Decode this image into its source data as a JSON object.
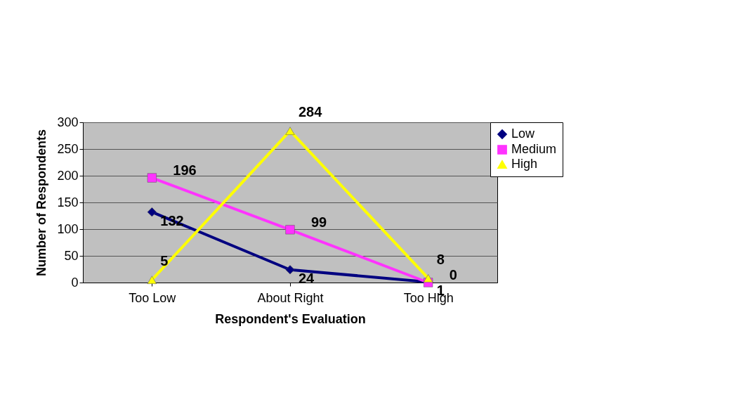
{
  "chart_data": {
    "type": "line",
    "xlabel": "Respondent's Evaluation",
    "ylabel": "Number of Respondents",
    "categories": [
      "Too Low",
      "About Right",
      "Too High"
    ],
    "series": [
      {
        "name": "Low",
        "color": "#000080",
        "marker": "diamond",
        "values": [
          132,
          24,
          1
        ]
      },
      {
        "name": "Medium",
        "color": "#ff33ff",
        "marker": "square",
        "values": [
          196,
          99,
          0
        ]
      },
      {
        "name": "High",
        "color": "#ffff00",
        "marker": "triangle",
        "values": [
          5,
          284,
          8
        ]
      }
    ],
    "ylim": [
      0,
      300
    ],
    "yticks": [
      0,
      50,
      100,
      150,
      200,
      250,
      300
    ],
    "grid": "y",
    "legend": "right",
    "data_labels": true,
    "line_style": "solid"
  }
}
